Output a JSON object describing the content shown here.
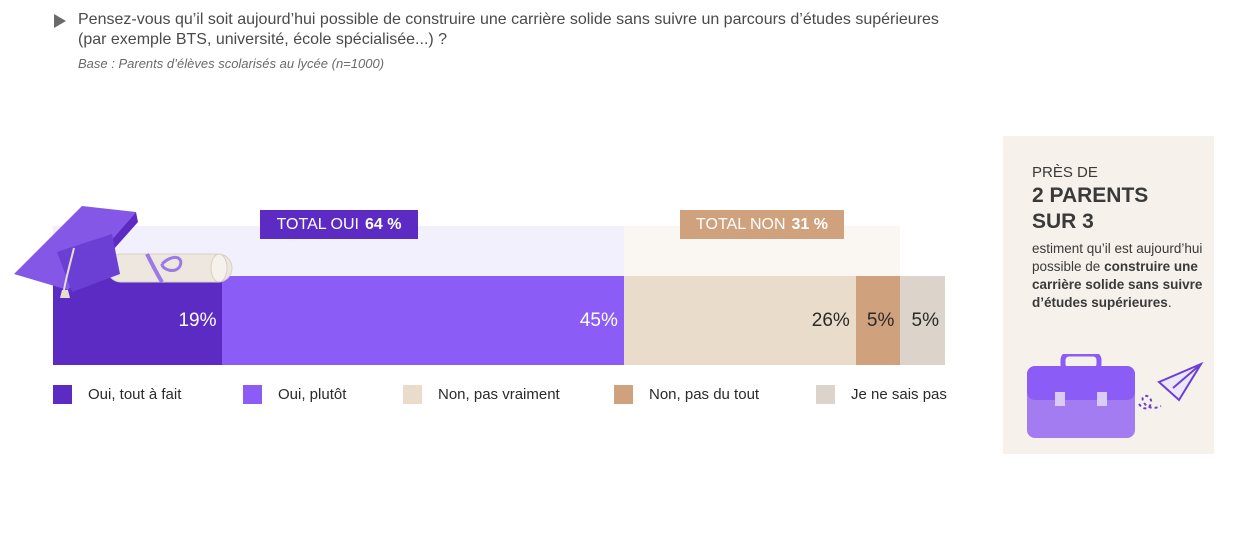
{
  "question": {
    "line1": "Pensez-vous qu’il soit aujourd’hui possible de construire une carrière solide sans suivre un parcours d’études supérieures",
    "line2": "(par exemple BTS, université, école spécialisée...) ?",
    "base": "Base : Parents d’élèves scolarisés au lycée (n=1000)"
  },
  "chart_data": {
    "type": "bar",
    "orientation": "horizontal-stacked",
    "xlim": [
      0,
      100
    ],
    "series": [
      {
        "name": "Oui, tout à fait",
        "value": 19,
        "label": "19%",
        "color": "#5b2bc4"
      },
      {
        "name": "Oui, plutôt",
        "value": 45,
        "label": "45%",
        "color": "#8b5cf6"
      },
      {
        "name": "Non, pas vraiment",
        "value": 26,
        "label": "26%",
        "color": "#eadccb"
      },
      {
        "name": "Non, pas du tout",
        "value": 5,
        "label": "5%",
        "color": "#cfa27d"
      },
      {
        "name": "Je ne sais pas",
        "value": 5,
        "label": "5%",
        "color": "#dcd3ca"
      }
    ],
    "totals": [
      {
        "label": "TOTAL OUI",
        "value": "64 %",
        "from": 0,
        "to": 64,
        "color": "#5b2bc4",
        "bg": "#f3f0fd"
      },
      {
        "label": "TOTAL NON",
        "value": "31 %",
        "from": 64,
        "to": 95,
        "color": "#cfa27d",
        "bg": "#faf7f2"
      }
    ],
    "legend_position": "bottom"
  },
  "card": {
    "kicker": "PRÈS DE",
    "headline1": "2 PARENTS",
    "headline2": "SUR 3",
    "text_plain": "estiment qu’il est aujourd’hui possible de",
    "text_bold": "construire une carrière solide sans suivre d’études supérieures",
    "text_end": "."
  },
  "icons": {
    "graduation": "graduation-cap-icon",
    "briefcase": "briefcase-icon",
    "plane": "paper-plane-icon"
  }
}
